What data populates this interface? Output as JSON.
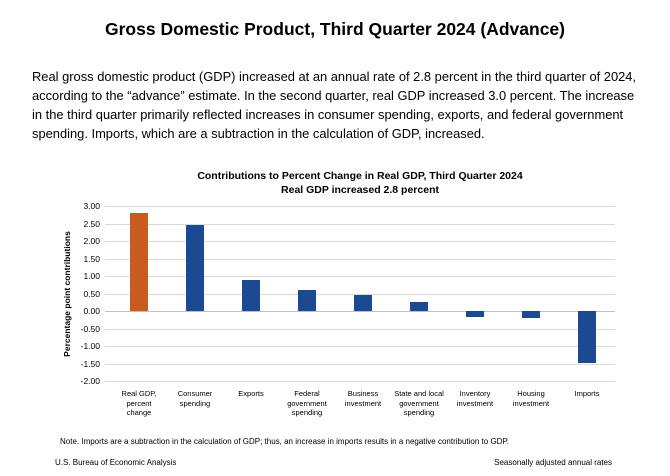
{
  "header": {
    "title": "Gross Domestic Product, Third Quarter 2024 (Advance)"
  },
  "intro": {
    "text": "Real gross domestic product (GDP) increased at an annual rate of 2.8 percent in the third quarter of 2024, according to the “advance” estimate. In the second quarter, real GDP increased 3.0 percent. The increase in the third quarter primarily reflected increases in consumer spending, exports, and federal government spending. Imports, which are a subtraction in the calculation of GDP, increased."
  },
  "chart_data": {
    "type": "bar",
    "title": "Contributions to Percent Change in Real GDP, Third Quarter 2024",
    "subtitle": "Real GDP increased 2.8 percent",
    "ylabel": "Percentage point contributions",
    "xlabel": "",
    "ylim": [
      -2.0,
      3.0
    ],
    "ytick_step": 0.5,
    "yticks": [
      "3.00",
      "2.50",
      "2.00",
      "1.50",
      "1.00",
      "0.50",
      "0.00",
      "-0.50",
      "-1.00",
      "-1.50",
      "-2.00"
    ],
    "grid": true,
    "legend": "none",
    "categories": [
      "Real GDP,\npercent\nchange",
      "Consumer\nspending",
      "Exports",
      "Federal\ngovernment\nspending",
      "Business\ninvestment",
      "State and local\ngovernment\nspending",
      "Inventory\ninvestment",
      "Housing\ninvestment",
      "Imports"
    ],
    "values": [
      2.8,
      2.46,
      0.89,
      0.6,
      0.46,
      0.25,
      -0.17,
      -0.21,
      -1.49
    ],
    "highlight_index": 0,
    "colors": {
      "highlight_bar": "#c65c1f",
      "default_bar": "#1b4a93",
      "gridline": "#d9d9d9",
      "zero_line": "#bfbfbf"
    }
  },
  "footer": {
    "note": "Note. Imports are a subtraction in the calculation of GDP; thus, an increase in imports results in a negative contribution to GDP.",
    "source": "U.S. Bureau of Economic Analysis",
    "seasonal": "Seasonally adjusted annual rates"
  }
}
